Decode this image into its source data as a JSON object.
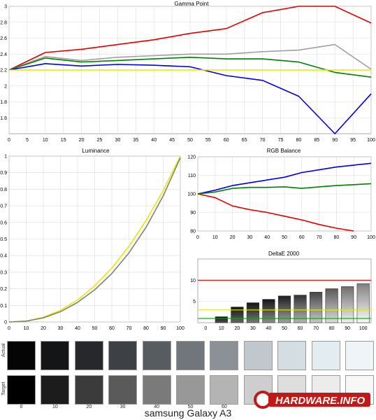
{
  "caption": "samsung  Galaxy A3",
  "logo_text": "HARDWARE.INFO",
  "chart_data": [
    {
      "id": "gamma",
      "type": "line",
      "title": "Gamma Point",
      "x": [
        0,
        10,
        20,
        30,
        40,
        50,
        60,
        70,
        80,
        90,
        100
      ],
      "xlim": [
        0,
        100
      ],
      "ylim": [
        1.4,
        3.0
      ],
      "xticks": [
        "0",
        "5",
        "10",
        "15",
        "20",
        "25",
        "30",
        "35",
        "40",
        "45",
        "50",
        "55",
        "60",
        "65",
        "70",
        "75",
        "80",
        "85",
        "90",
        "95",
        "100"
      ],
      "yticks": [
        "1.6",
        "1.8",
        "2",
        "2.2",
        "2.4",
        "2.6",
        "2.8",
        "3"
      ],
      "grid": true,
      "series": [
        {
          "color": "#e00000",
          "values": [
            2.2,
            2.42,
            2.46,
            2.52,
            2.58,
            2.66,
            2.72,
            2.92,
            3.0,
            3.0,
            2.79
          ]
        },
        {
          "color": "#a0a0a0",
          "values": [
            2.2,
            2.37,
            2.32,
            2.36,
            2.38,
            2.4,
            2.4,
            2.43,
            2.45,
            2.52,
            2.21
          ]
        },
        {
          "color": "#008000",
          "values": [
            2.2,
            2.35,
            2.3,
            2.32,
            2.34,
            2.36,
            2.34,
            2.34,
            2.3,
            2.17,
            2.11
          ]
        },
        {
          "color": "#0000e0",
          "values": [
            2.2,
            2.28,
            2.25,
            2.27,
            2.26,
            2.24,
            2.13,
            2.07,
            1.87,
            1.33,
            1.9
          ]
        },
        {
          "color": "#e8e800",
          "values": [
            2.2,
            2.2,
            2.2,
            2.2,
            2.2,
            2.2,
            2.2,
            2.2,
            2.2,
            2.2,
            2.2
          ]
        }
      ]
    },
    {
      "id": "luminance",
      "type": "line",
      "title": "Luminance",
      "x": [
        0,
        10,
        20,
        30,
        40,
        50,
        60,
        70,
        80,
        90,
        100
      ],
      "xlim": [
        0,
        100
      ],
      "ylim": [
        0,
        1
      ],
      "xticks": [
        "0",
        "10",
        "20",
        "30",
        "40",
        "50",
        "60",
        "70",
        "80",
        "90",
        "100"
      ],
      "yticks": [
        "0",
        "0.1",
        "0.2",
        "0.3",
        "0.4",
        "0.5",
        "0.6",
        "0.7",
        "0.8",
        "0.9",
        "1"
      ],
      "grid": true,
      "series": [
        {
          "color": "#e8e800",
          "values": [
            0,
            0.006,
            0.029,
            0.071,
            0.133,
            0.218,
            0.325,
            0.456,
            0.612,
            0.793,
            1.0
          ]
        },
        {
          "color": "#808080",
          "values": [
            0,
            0.005,
            0.025,
            0.062,
            0.118,
            0.194,
            0.292,
            0.417,
            0.571,
            0.76,
            0.99
          ]
        }
      ]
    },
    {
      "id": "rgb",
      "type": "line",
      "title": "RGB Balance",
      "x": [
        0,
        10,
        20,
        30,
        40,
        50,
        60,
        70,
        80,
        90,
        100
      ],
      "xlim": [
        0,
        100
      ],
      "ylim": [
        80,
        120
      ],
      "xticks": [
        "0",
        "10",
        "20",
        "30",
        "40",
        "50",
        "60",
        "70",
        "80",
        "90",
        "100"
      ],
      "yticks": [
        "80",
        "90",
        "100",
        "110",
        "120"
      ],
      "grid": true,
      "series": [
        {
          "color": "#0000e0",
          "values": [
            100,
            102,
            104.5,
            106,
            107.5,
            109,
            111.5,
            113,
            114.5,
            115.5,
            116.5
          ]
        },
        {
          "color": "#008000",
          "values": [
            100,
            101,
            103,
            103.5,
            103.5,
            103.8,
            103,
            103.8,
            104.5,
            105,
            105.5
          ]
        },
        {
          "color": "#e00000",
          "values": [
            100,
            98,
            93.5,
            91.5,
            90,
            88,
            86,
            83.5,
            81.5,
            80,
            null
          ]
        }
      ]
    },
    {
      "id": "deltae",
      "type": "bar",
      "title": "DeltaE 2000",
      "categories": [
        "0",
        "10",
        "20",
        "30",
        "40",
        "50",
        "60",
        "70",
        "80",
        "90",
        "100"
      ],
      "values": [
        null,
        1.4,
        3.7,
        4.7,
        5.5,
        6.3,
        6.5,
        7.2,
        8.0,
        8.5,
        9.2
      ],
      "ylim": [
        0,
        15
      ],
      "yticks": [
        "5",
        "10"
      ],
      "ref_lines": [
        {
          "color": "#cc0000",
          "value": 10
        },
        {
          "color": "#e8e800",
          "value": 3
        },
        {
          "color": "#00aa00",
          "value": 1
        }
      ]
    }
  ],
  "swatches": {
    "actual_label": "Actual",
    "target_label": "Target",
    "labels": [
      "0",
      "10",
      "20",
      "30",
      "40",
      "50",
      "60",
      "70",
      "80",
      "90",
      "100"
    ],
    "actual_colors": [
      "#050505",
      "#141516",
      "#26282b",
      "#3d4145",
      "#575c61",
      "#70767b",
      "#8b9196",
      "#c0c8cd",
      "#d4dde2",
      "#e2ecf1",
      "#eef4f7"
    ],
    "target_colors": [
      "#000000",
      "#1c1c1c",
      "#3b3b3b",
      "#5a5a5a",
      "#7a7a7a",
      "#989898",
      "#b4b4b4",
      "#cecece",
      "#dedede",
      "#ececec",
      "#f7f7f7"
    ]
  }
}
